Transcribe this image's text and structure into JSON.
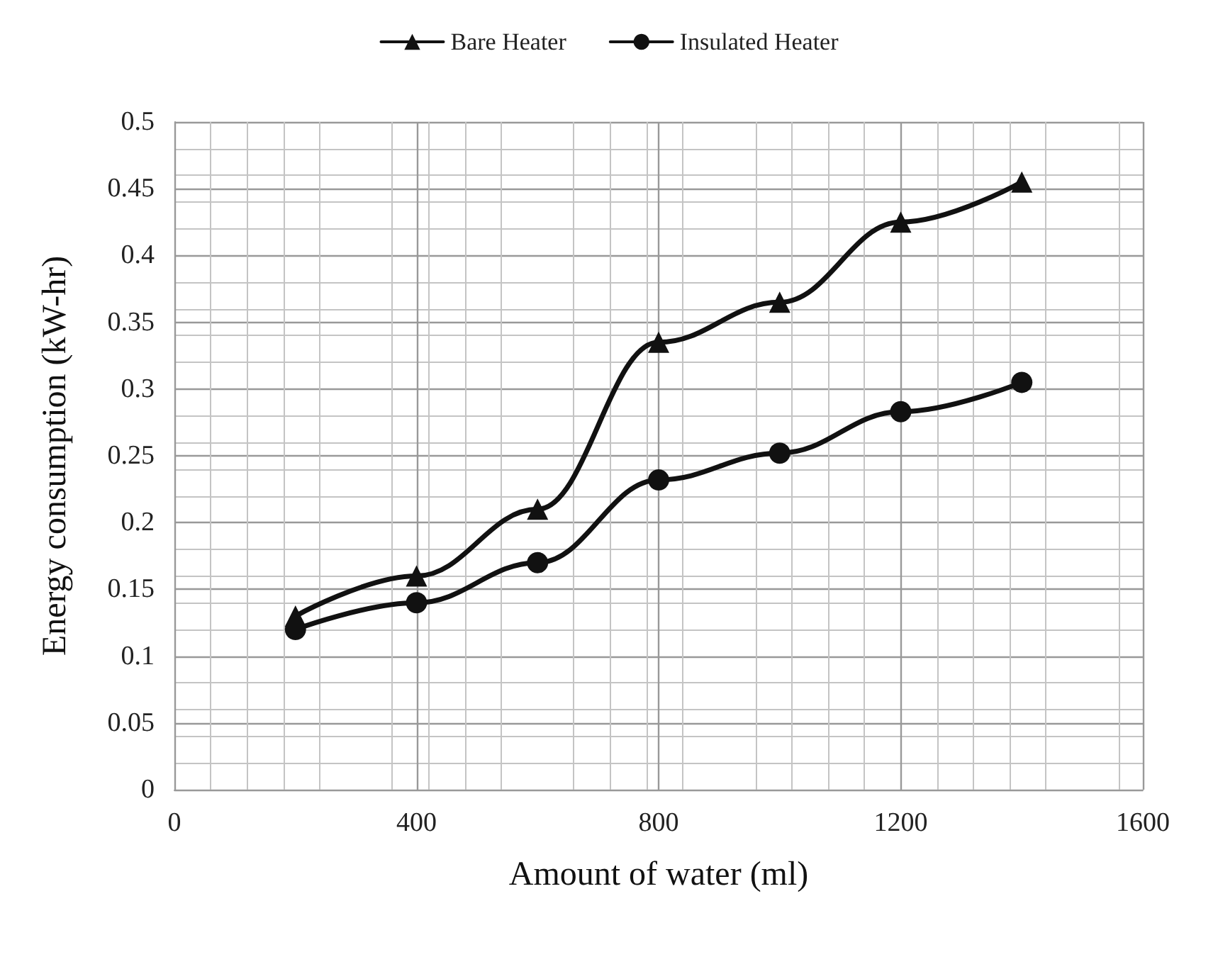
{
  "chart_data": {
    "type": "line",
    "xlabel": "Amount of water (ml)",
    "ylabel": "Energy consumption (kW-hr)",
    "x": [
      200,
      400,
      600,
      800,
      1000,
      1200,
      1400
    ],
    "series": [
      {
        "name": "Bare Heater",
        "color": "#111111",
        "marker": "triangle",
        "values": [
          0.13,
          0.16,
          0.21,
          0.335,
          0.365,
          0.425,
          0.455
        ]
      },
      {
        "name": "Insulated Heater",
        "color": "#111111",
        "marker": "circle",
        "values": [
          0.12,
          0.14,
          0.17,
          0.232,
          0.252,
          0.283,
          0.305
        ]
      }
    ],
    "xlim": [
      0,
      1600
    ],
    "xticks": [
      0,
      400,
      800,
      1200,
      1600
    ],
    "ylim": [
      0,
      0.5
    ],
    "yticks": [
      0,
      0.05,
      0.1,
      0.15,
      0.2,
      0.25,
      0.3,
      0.35,
      0.4,
      0.45,
      0.5
    ],
    "grid": true,
    "legend": "top",
    "line_style": "solid"
  }
}
